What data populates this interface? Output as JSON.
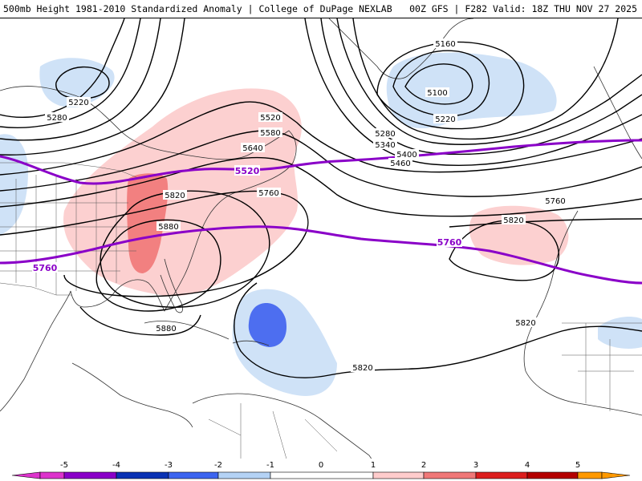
{
  "header": {
    "title_left": "500mb Height 1981-2010 Standardized Anomaly | College of DuPage NEXLAB",
    "title_right": "00Z GFS | F282 Valid: 18Z THU NOV 27 2025"
  },
  "contour_labels": {
    "c5160": "5160",
    "c5100": "5100",
    "c5220a": "5220",
    "c5220b": "5220",
    "c5280a": "5280",
    "c5280b": "5280",
    "c5340": "5340",
    "c5400": "5400",
    "c5460": "5460",
    "c5520": "5520",
    "c5580": "5580",
    "c5640": "5640",
    "c5760a": "5760",
    "c5760b": "5760",
    "c5820a": "5820",
    "c5820b": "5820",
    "c5820c": "5820",
    "c5820d": "5820",
    "c5880a": "5880",
    "c5880b": "5880"
  },
  "purple_labels": {
    "p5520": "5520",
    "p5760a": "5760",
    "p5760b": "5760"
  },
  "colorbar": {
    "ticks": [
      "-5",
      "-4",
      "-3",
      "-2",
      "-1",
      "0",
      "1",
      "2",
      "3",
      "4",
      "5"
    ],
    "colors": {
      "m5": "#dd33cc",
      "m4": "#8a00c8",
      "m3": "#0a32b4",
      "m2": "#3c64f0",
      "m1": "#b4d2f5",
      "zero": "#ffffff",
      "p1": "#ffcccc",
      "p2": "#f07878",
      "p3": "#dc1e1e",
      "p4": "#b40000",
      "p5": "#ff9900"
    }
  }
}
